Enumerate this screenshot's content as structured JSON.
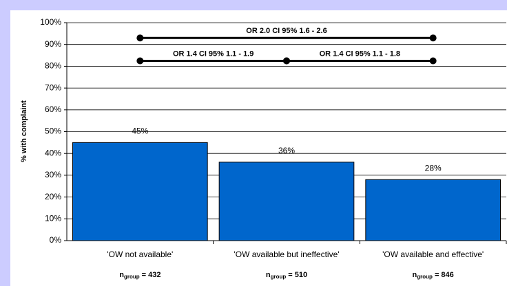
{
  "chart_data": {
    "type": "bar",
    "y_label": "% with complaint",
    "categories": [
      "'OW not available'",
      "'OW available but ineffective'",
      "'OW available and effective'"
    ],
    "values": [
      45,
      36,
      28
    ],
    "value_labels": [
      "45%",
      "36%",
      "28%"
    ],
    "color": "#0066cc",
    "n_label": {
      "base": "n",
      "subscript": "group"
    },
    "group_size_labels": [
      "= 432",
      "= 510",
      "= 846"
    ],
    "ylim": [
      0,
      100
    ],
    "yticks": [
      {
        "value": 0,
        "label": "0%"
      },
      {
        "value": 10,
        "label": "10%"
      },
      {
        "value": 20,
        "label": "20%"
      },
      {
        "value": 30,
        "label": "30%"
      },
      {
        "value": 40,
        "label": "40%"
      },
      {
        "value": 50,
        "label": "50%"
      },
      {
        "value": 60,
        "label": "60%"
      },
      {
        "value": 70,
        "label": "70%"
      },
      {
        "value": 80,
        "label": "80%"
      },
      {
        "value": 90,
        "label": "90%"
      },
      {
        "value": 100,
        "label": "100%"
      }
    ],
    "grid": true,
    "annotations": [
      {
        "text": "OR 2.0 CI 95% 1.6 - 2.6",
        "from": 0,
        "to": 2,
        "y": 93
      },
      {
        "text": "OR 1.4 CI 95% 1.1 - 1.9",
        "from": 0,
        "to": 1,
        "y": 82.5
      },
      {
        "text": "OR 1.4 CI 95% 1.1 - 1.8",
        "from": 1,
        "to": 2,
        "y": 82.5
      }
    ]
  }
}
